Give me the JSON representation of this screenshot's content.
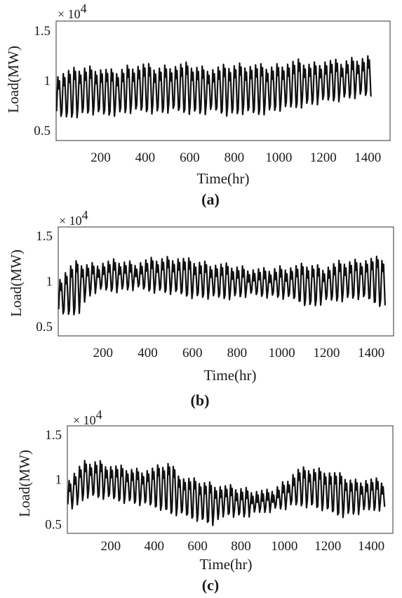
{
  "chart_data": [
    {
      "type": "line",
      "panel_label": "(a)",
      "xlabel": "Time(hr)",
      "ylabel": "Load(MW)",
      "y_multiplier": "× 10",
      "y_multiplier_exp": "4",
      "xlim": [
        0,
        1500
      ],
      "ylim": [
        0.4,
        1.6
      ],
      "xticks": [
        200,
        400,
        600,
        800,
        1000,
        1200,
        1400
      ],
      "yticks": [
        0.5,
        1,
        1.5
      ],
      "ytick_labels": [
        "0.5",
        "1",
        "1.5"
      ],
      "x_end": 1420,
      "cycle_hours": 24,
      "daily_peak": [
        1.07,
        1.1,
        1.13,
        1.12,
        1.08,
        1.14,
        1.16,
        1.12,
        1.15,
        1.16,
        1.13,
        1.12,
        1.14,
        1.16,
        1.15,
        1.13,
        1.17,
        1.19,
        1.16,
        1.2,
        1.18,
        1.22,
        1.24
      ],
      "daily_trough": [
        0.62,
        0.65,
        0.68,
        0.66,
        0.67,
        0.69,
        0.7,
        0.68,
        0.7,
        0.69,
        0.67,
        0.7,
        0.66,
        0.68,
        0.67,
        0.7,
        0.72,
        0.75,
        0.77,
        0.8,
        0.82,
        0.84,
        0.85
      ]
    },
    {
      "type": "line",
      "panel_label": "(b)",
      "xlabel": "Time(hr)",
      "ylabel": "Load(MW)",
      "y_multiplier": "× 10",
      "y_multiplier_exp": "4",
      "xlim": [
        0,
        1500
      ],
      "ylim": [
        0.4,
        1.6
      ],
      "xticks": [
        200,
        400,
        600,
        800,
        1000,
        1200,
        1400
      ],
      "yticks": [
        0.5,
        1,
        1.5
      ],
      "ytick_labels": [
        "0.5",
        "1",
        "1.5"
      ],
      "x_end": 1460,
      "cycle_hours": 24,
      "daily_peak": [
        1.05,
        1.2,
        1.18,
        1.21,
        1.22,
        1.2,
        1.23,
        1.25,
        1.26,
        1.22,
        1.2,
        1.18,
        1.16,
        1.14,
        1.12,
        1.15,
        1.16,
        1.18,
        1.15,
        1.2,
        1.22,
        1.24,
        1.25
      ],
      "daily_trough": [
        0.62,
        0.65,
        0.88,
        0.9,
        0.9,
        0.92,
        0.9,
        0.88,
        0.86,
        0.83,
        0.82,
        0.82,
        0.83,
        0.85,
        0.84,
        0.82,
        0.8,
        0.72,
        0.78,
        0.8,
        0.82,
        0.8,
        0.72
      ]
    },
    {
      "type": "line",
      "panel_label": "(c)",
      "xlabel": "Time(hr)",
      "ylabel": "Load(MW)",
      "y_multiplier": "× 10",
      "y_multiplier_exp": "4",
      "xlim": [
        0,
        1500
      ],
      "ylim": [
        0.4,
        1.6
      ],
      "xticks": [
        200,
        400,
        600,
        800,
        1000,
        1200,
        1400
      ],
      "yticks": [
        0.5,
        1,
        1.5
      ],
      "ytick_labels": [
        "0.5",
        "1",
        "1.5"
      ],
      "x_end": 1460,
      "cycle_hours": 24,
      "daily_peak": [
        1.02,
        1.18,
        1.2,
        1.15,
        1.12,
        1.1,
        1.12,
        1.18,
        1.02,
        0.98,
        0.95,
        0.92,
        0.9,
        0.88,
        0.86,
        0.95,
        1.1,
        1.12,
        1.1,
        1.05,
        0.98,
        1.0,
        0.98
      ],
      "daily_trough": [
        0.65,
        0.82,
        0.8,
        0.78,
        0.75,
        0.72,
        0.7,
        0.62,
        0.6,
        0.55,
        0.5,
        0.62,
        0.58,
        0.62,
        0.66,
        0.68,
        0.72,
        0.7,
        0.65,
        0.6,
        0.62,
        0.66,
        0.68
      ]
    }
  ]
}
